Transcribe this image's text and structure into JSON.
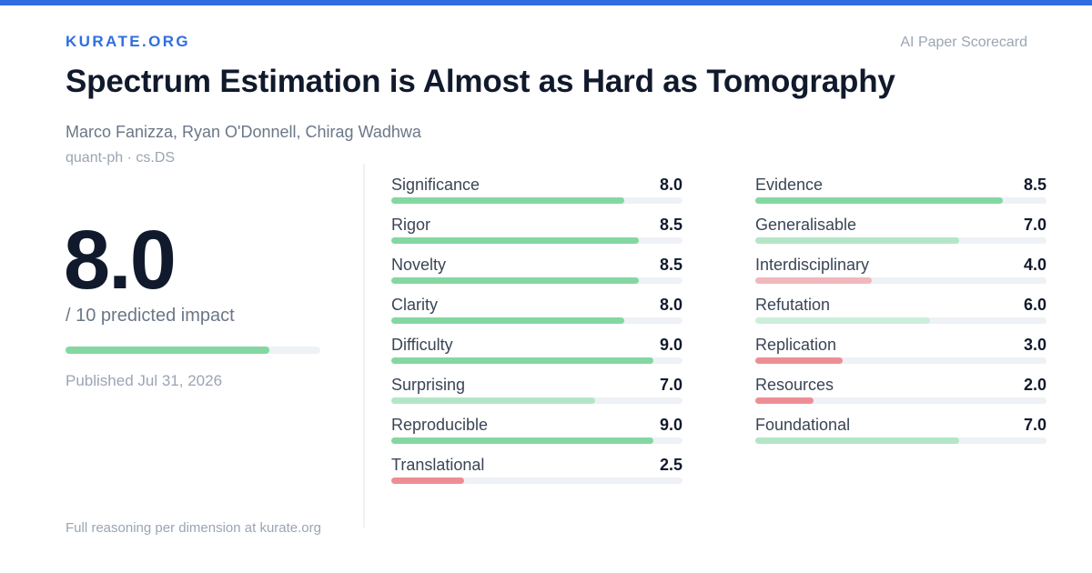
{
  "brand": "KURATE.ORG",
  "tagline": "AI Paper Scorecard",
  "title": "Spectrum Estimation is Almost as Hard as Tomography",
  "authors": "Marco Fanizza, Ryan O'Donnell, Chirag Wadhwa",
  "categories": "quant-ph · cs.DS",
  "score": {
    "value": "8.0",
    "subtitle": "/ 10 predicted impact",
    "fraction": 0.8
  },
  "published": "Published Jul 31, 2026",
  "footer": "Full reasoning per dimension at kurate.org",
  "colors": {
    "accent": "#2f6ee0",
    "high": "#84d7a2",
    "mid": "#b3e6c6",
    "mid_light": "#cdeedb",
    "low": "#f0b8bc",
    "very_low": "#ec8f95",
    "track": "#eef1f5"
  },
  "dimensions_left": [
    {
      "label": "Significance",
      "value": "8.0",
      "fraction": 0.8,
      "color": "#84d7a2"
    },
    {
      "label": "Rigor",
      "value": "8.5",
      "fraction": 0.85,
      "color": "#84d7a2"
    },
    {
      "label": "Novelty",
      "value": "8.5",
      "fraction": 0.85,
      "color": "#84d7a2"
    },
    {
      "label": "Clarity",
      "value": "8.0",
      "fraction": 0.8,
      "color": "#84d7a2"
    },
    {
      "label": "Difficulty",
      "value": "9.0",
      "fraction": 0.9,
      "color": "#84d7a2"
    },
    {
      "label": "Surprising",
      "value": "7.0",
      "fraction": 0.7,
      "color": "#b3e6c6"
    },
    {
      "label": "Reproducible",
      "value": "9.0",
      "fraction": 0.9,
      "color": "#84d7a2"
    },
    {
      "label": "Translational",
      "value": "2.5",
      "fraction": 0.25,
      "color": "#ec8f95"
    }
  ],
  "dimensions_right": [
    {
      "label": "Evidence",
      "value": "8.5",
      "fraction": 0.85,
      "color": "#84d7a2"
    },
    {
      "label": "Generalisable",
      "value": "7.0",
      "fraction": 0.7,
      "color": "#b3e6c6"
    },
    {
      "label": "Interdisciplinary",
      "value": "4.0",
      "fraction": 0.4,
      "color": "#f0b8bc"
    },
    {
      "label": "Refutation",
      "value": "6.0",
      "fraction": 0.6,
      "color": "#cdeedb"
    },
    {
      "label": "Replication",
      "value": "3.0",
      "fraction": 0.3,
      "color": "#ec8f95"
    },
    {
      "label": "Resources",
      "value": "2.0",
      "fraction": 0.2,
      "color": "#ec8f95"
    },
    {
      "label": "Foundational",
      "value": "7.0",
      "fraction": 0.7,
      "color": "#b3e6c6"
    }
  ]
}
